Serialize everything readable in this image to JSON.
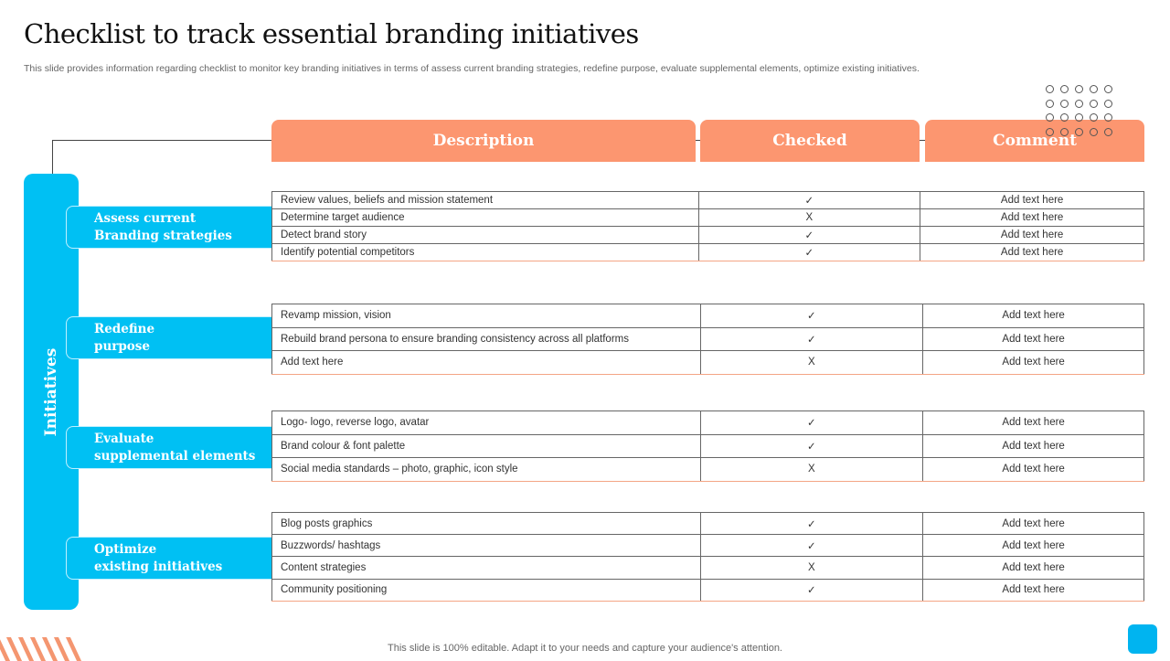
{
  "title": "Checklist to track essential branding initiatives",
  "subtitle": "This slide provides information regarding checklist to monitor key branding initiatives in terms of assess current branding strategies, redefine purpose, evaluate supplemental elements, optimize existing initiatives.",
  "headers": {
    "description": "Description",
    "checked": "Checked",
    "comment": "Comment"
  },
  "side_label": "Initiatives",
  "colors": {
    "orange": "#fc9670",
    "blue": "#00c0f3"
  },
  "groups": [
    {
      "label": "Assess current\nBranding strategies",
      "rows": [
        {
          "description": "Review values, beliefs and mission statement",
          "checked": "✓",
          "comment": "Add text here"
        },
        {
          "description": "Determine target audience",
          "checked": "X",
          "comment": "Add text here"
        },
        {
          "description": "Detect brand story",
          "checked": "✓",
          "comment": "Add text here"
        },
        {
          "description": "Identify potential competitors",
          "checked": "✓",
          "comment": "Add text here"
        }
      ]
    },
    {
      "label": "Redefine\npurpose",
      "rows": [
        {
          "description": "Revamp mission, vision",
          "checked": "✓",
          "comment": "Add text here"
        },
        {
          "description": "Rebuild brand persona to ensure branding consistency across all platforms",
          "checked": "✓",
          "comment": "Add text here"
        },
        {
          "description": "Add text here",
          "checked": "X",
          "comment": "Add text here"
        }
      ]
    },
    {
      "label": "Evaluate\nsupplemental elements",
      "rows": [
        {
          "description": "Logo- logo, reverse logo, avatar",
          "checked": "✓",
          "comment": "Add text here"
        },
        {
          "description": "Brand colour & font palette",
          "checked": "✓",
          "comment": "Add text here"
        },
        {
          "description": "Social media standards – photo, graphic, icon style",
          "checked": "X",
          "comment": "Add text here"
        }
      ]
    },
    {
      "label": "Optimize\nexisting initiatives",
      "rows": [
        {
          "description": "Blog posts graphics",
          "checked": "✓",
          "comment": "Add text here"
        },
        {
          "description": "Buzzwords/ hashtags",
          "checked": "✓",
          "comment": "Add text here"
        },
        {
          "description": "Content strategies",
          "checked": "X",
          "comment": "Add text here"
        },
        {
          "description": "Community positioning",
          "checked": "✓",
          "comment": "Add text here"
        }
      ]
    }
  ],
  "footer": "This slide is 100% editable. Adapt it to your needs and capture your audience's attention."
}
